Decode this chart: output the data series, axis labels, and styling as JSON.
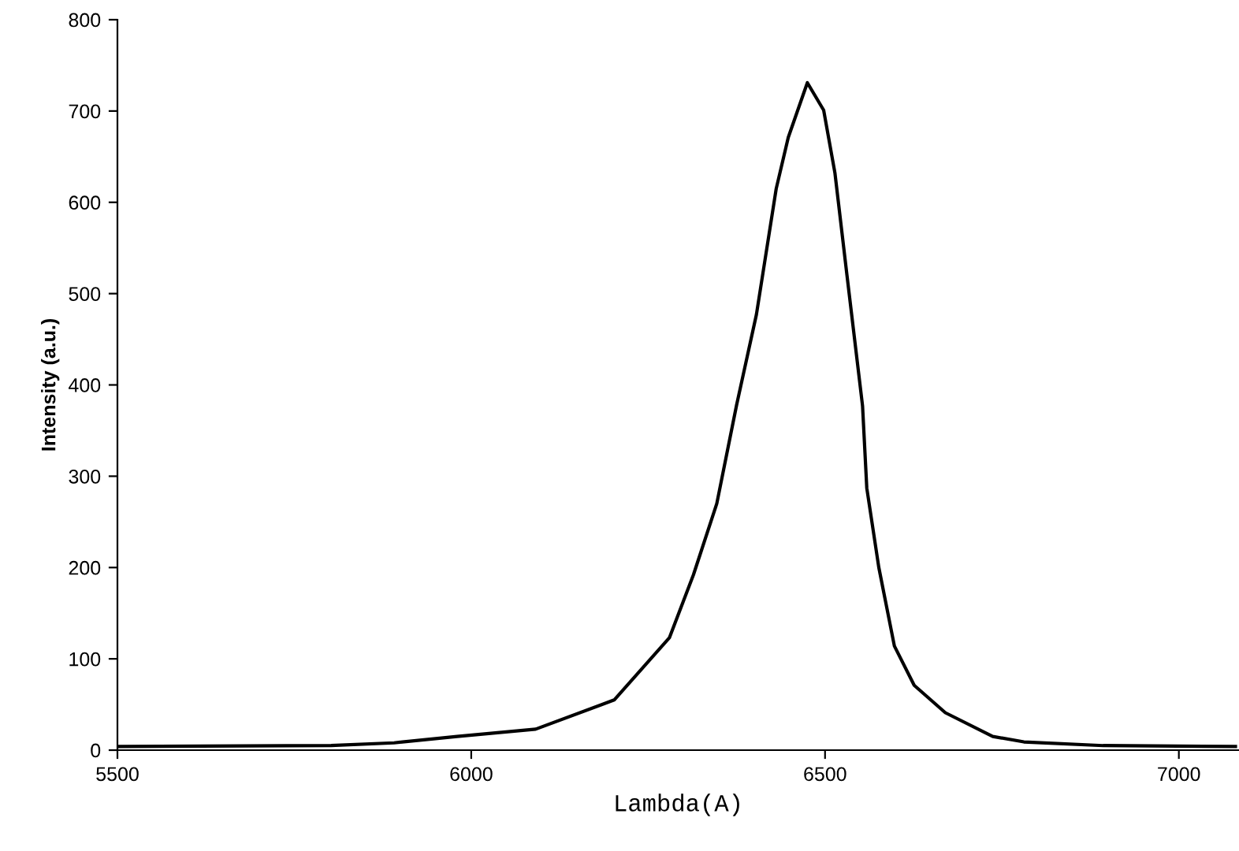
{
  "chart_data": {
    "type": "line",
    "xlabel": "Lambda(A)",
    "ylabel": "Intensity (a.u.)",
    "x": [
      5500,
      5802,
      5891,
      5980,
      6091,
      6202,
      6280,
      6314,
      6347,
      6375,
      6403,
      6431,
      6448,
      6475,
      6498,
      6514,
      6531,
      6553,
      6559,
      6576,
      6598,
      6626,
      6670,
      6737,
      6781,
      6893,
      7080
    ],
    "series": [
      {
        "color": "#000000",
        "values": [
          4,
          5,
          8,
          15,
          23,
          55,
          123,
          192,
          270,
          378,
          477,
          615,
          671,
          731,
          701,
          632,
          520,
          377,
          287,
          200,
          114,
          71,
          41,
          15,
          9,
          5,
          4
        ]
      }
    ],
    "xlim": [
      5500,
      7085
    ],
    "xticks": [
      5500,
      6000,
      6500,
      7000
    ],
    "ylim": [
      0,
      800
    ],
    "yticks": [
      0,
      100,
      200,
      300,
      400,
      500,
      600,
      700,
      800
    ],
    "grid": false,
    "legend": false,
    "marker": "none",
    "line_style": "solid"
  }
}
